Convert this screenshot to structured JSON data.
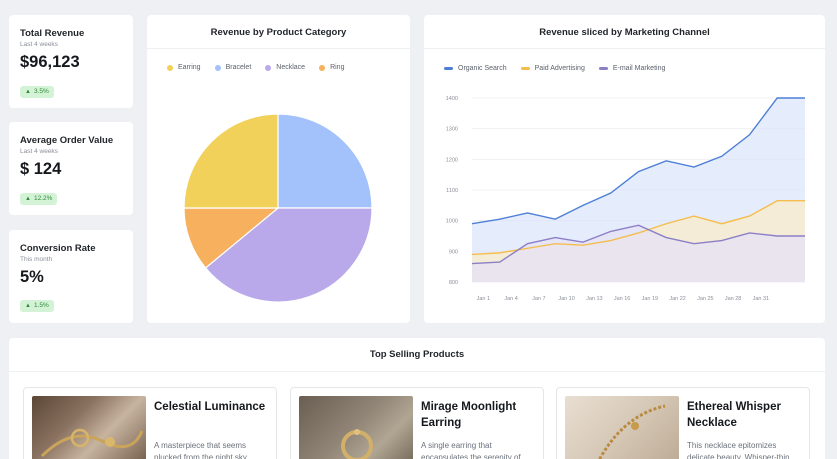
{
  "kpis": [
    {
      "title": "Total Revenue",
      "period": "Last 4 weeks",
      "value": "$96,123",
      "change": "3.5%"
    },
    {
      "title": "Average Order Value",
      "period": "Last 4 weeks",
      "value": "$ 124",
      "change": "12.2%"
    },
    {
      "title": "Conversion Rate",
      "period": "This month",
      "value": "5%",
      "change": "1.5%"
    }
  ],
  "colors": {
    "accent_up": "#2f8a3a",
    "badge_bg": "#d4f3d6"
  },
  "chart_data": [
    {
      "type": "pie",
      "title": "Revenue by Product Category",
      "legend_position": "top-left",
      "labels": [
        "Earring",
        "Bracelet",
        "Necklace",
        "Ring"
      ],
      "values": [
        25,
        25,
        39,
        11
      ],
      "colors": [
        "#f2d15a",
        "#a3c2fc",
        "#b9a9ea",
        "#f6b05e"
      ]
    },
    {
      "type": "area",
      "title": "Revenue sliced by Marketing Channel",
      "legend_position": "top-left",
      "categories": [
        "Jan 1",
        "Jan 4",
        "Jan 7",
        "Jan 10",
        "Jan 13",
        "Jan 16",
        "Jan 19",
        "Jan 22",
        "Jan 25",
        "Jan 28",
        "Jan 31"
      ],
      "yticks": [
        800,
        900,
        1000,
        1100,
        1200,
        1300,
        1400
      ],
      "ylim": [
        800,
        1400
      ],
      "grid": true,
      "series": [
        {
          "name": "Organic Search",
          "color": "#4e7fd6",
          "fill": "#dce6fb",
          "x": [
            0,
            1,
            2,
            3,
            4,
            5,
            6,
            7,
            8,
            9,
            10,
            11,
            12
          ],
          "values": [
            990,
            1005,
            1025,
            1005,
            1050,
            1090,
            1160,
            1195,
            1175,
            1210,
            1280,
            1400,
            1400
          ]
        },
        {
          "name": "Paid Advertising",
          "color": "#f5bd4e",
          "fill": "#faeccb",
          "x": [
            0,
            1,
            2,
            3,
            4,
            5,
            6,
            7,
            8,
            9,
            10,
            11,
            12
          ],
          "values": [
            890,
            895,
            910,
            925,
            920,
            935,
            960,
            990,
            1015,
            990,
            1015,
            1065,
            1065
          ]
        },
        {
          "name": "E-mail Marketing",
          "color": "#8b7fc6",
          "fill": "#e6e1f5",
          "x": [
            0,
            1,
            2,
            3,
            4,
            5,
            6,
            7,
            8,
            9,
            10,
            11,
            12
          ],
          "values": [
            860,
            865,
            925,
            945,
            930,
            965,
            985,
            945,
            925,
            935,
            960,
            950,
            950
          ]
        }
      ]
    }
  ],
  "top_products": {
    "title": "Top Selling Products",
    "items": [
      {
        "name": "Celestial Luminance",
        "description": "A masterpiece that seems plucked from the night sky"
      },
      {
        "name": "Mirage Moonlight Earring",
        "description": "A single earring that encapsulates the serenity of"
      },
      {
        "name": "Ethereal Whisper Necklace",
        "description": "This necklace epitomizes delicate beauty. Whisper-thin"
      }
    ]
  }
}
